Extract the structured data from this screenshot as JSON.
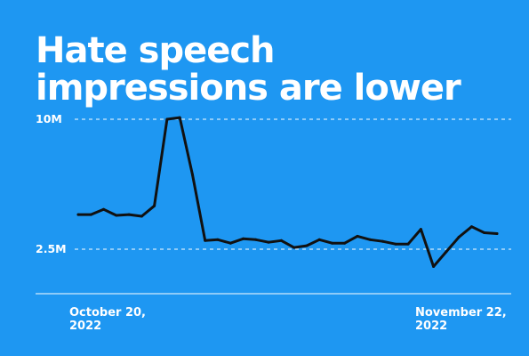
{
  "title_lines": [
    "Hate speech",
    "impressions are lower"
  ],
  "colors": {
    "background": "#1e97f2",
    "line": "#111111",
    "text": "#ffffff",
    "grid": "#ffffff"
  },
  "x_labels": {
    "start": {
      "line1": "October 20,",
      "line2": "2022"
    },
    "end": {
      "line1": "November 22,",
      "line2": "2022"
    }
  },
  "chart_data": {
    "type": "line",
    "title": "Hate speech impressions are lower",
    "xlabel": "",
    "ylabel": "",
    "x_range": [
      "2022-10-20",
      "2022-11-22"
    ],
    "ylim": [
      0,
      10500000
    ],
    "yticks": [
      {
        "value": 10000000,
        "label": "10M"
      },
      {
        "value": 2500000,
        "label": "2.5M"
      }
    ],
    "grid": "dashed horizontal at y ticks",
    "series": [
      {
        "x": [
          "2022-10-20",
          "2022-10-21",
          "2022-10-22",
          "2022-10-23",
          "2022-10-24",
          "2022-10-25",
          "2022-10-26",
          "2022-10-27",
          "2022-10-28",
          "2022-10-29",
          "2022-10-30",
          "2022-10-31",
          "2022-11-01",
          "2022-11-02",
          "2022-11-03",
          "2022-11-04",
          "2022-11-05",
          "2022-11-06",
          "2022-11-07",
          "2022-11-08",
          "2022-11-09",
          "2022-11-10",
          "2022-11-11",
          "2022-11-12",
          "2022-11-13",
          "2022-11-14",
          "2022-11-15",
          "2022-11-16",
          "2022-11-17",
          "2022-11-18",
          "2022-11-19",
          "2022-11-20",
          "2022-11-21",
          "2022-11-22"
        ],
        "values": [
          4500000,
          4500000,
          4800000,
          4450000,
          4500000,
          4400000,
          5000000,
          10000000,
          10100000,
          6800000,
          3000000,
          3050000,
          2850000,
          3100000,
          3050000,
          2900000,
          3000000,
          2600000,
          2700000,
          3050000,
          2850000,
          2850000,
          3250000,
          3050000,
          2950000,
          2800000,
          2800000,
          3650000,
          1500000,
          2350000,
          3200000,
          3800000,
          3450000,
          3400000
        ]
      }
    ]
  }
}
